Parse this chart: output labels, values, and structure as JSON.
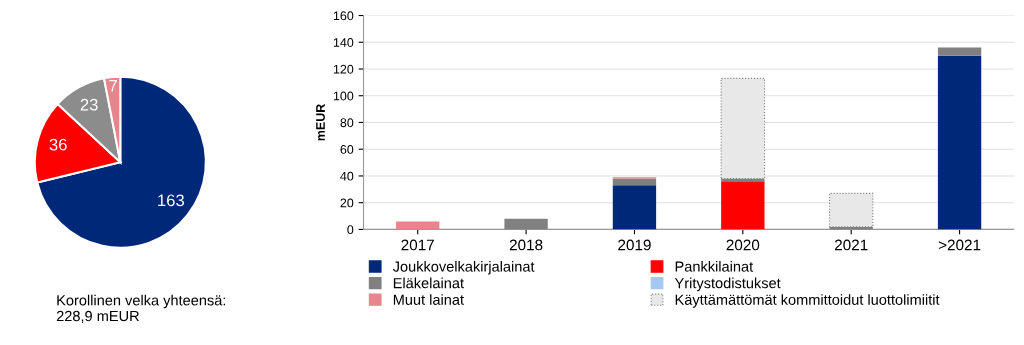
{
  "chart_data": [
    {
      "type": "pie",
      "categories": [
        null,
        null,
        null,
        null
      ],
      "values": [
        163,
        36,
        23,
        7
      ],
      "colors": [
        "#002878",
        "#ff0000",
        "#8c8c8c",
        "#e8848c"
      ],
      "data_labels": true,
      "annotations": [
        "Korollinen velka yhteensä:\n228,9 mEUR"
      ]
    },
    {
      "type": "bar",
      "stacked": true,
      "ylabel": "mEUR",
      "categories": [
        "2017",
        "2018",
        "2019",
        "2020",
        "2021",
        ">2021"
      ],
      "ylim": [
        0,
        160
      ],
      "yticks": [
        0,
        20,
        40,
        60,
        80,
        100,
        120,
        140,
        160
      ],
      "grid": "y",
      "legend": "bottom",
      "series": [
        {
          "name": "Joukkovelkakirjalainat",
          "color": "#002878",
          "values": [
            null,
            null,
            33,
            null,
            null,
            130
          ]
        },
        {
          "name": "Pankkilainat",
          "color": "#ff0000",
          "values": [
            null,
            null,
            null,
            36,
            null,
            null
          ]
        },
        {
          "name": "Eläkelainat",
          "color": "#808080",
          "values": [
            null,
            8,
            5,
            2,
            2,
            6
          ]
        },
        {
          "name": "Yritystodistukset",
          "color": "#a6c8f0",
          "values": [
            null,
            null,
            null,
            null,
            null,
            null
          ]
        },
        {
          "name": "Muut lainat",
          "color": "#e8848c",
          "values": [
            6,
            null,
            1,
            null,
            null,
            null
          ]
        },
        {
          "name": "Käyttämättömät kommittoidut luottolimiitit",
          "color": "#e8e8e8",
          "line_style": "dotted",
          "values": [
            null,
            null,
            null,
            75,
            25,
            null
          ]
        }
      ]
    }
  ]
}
